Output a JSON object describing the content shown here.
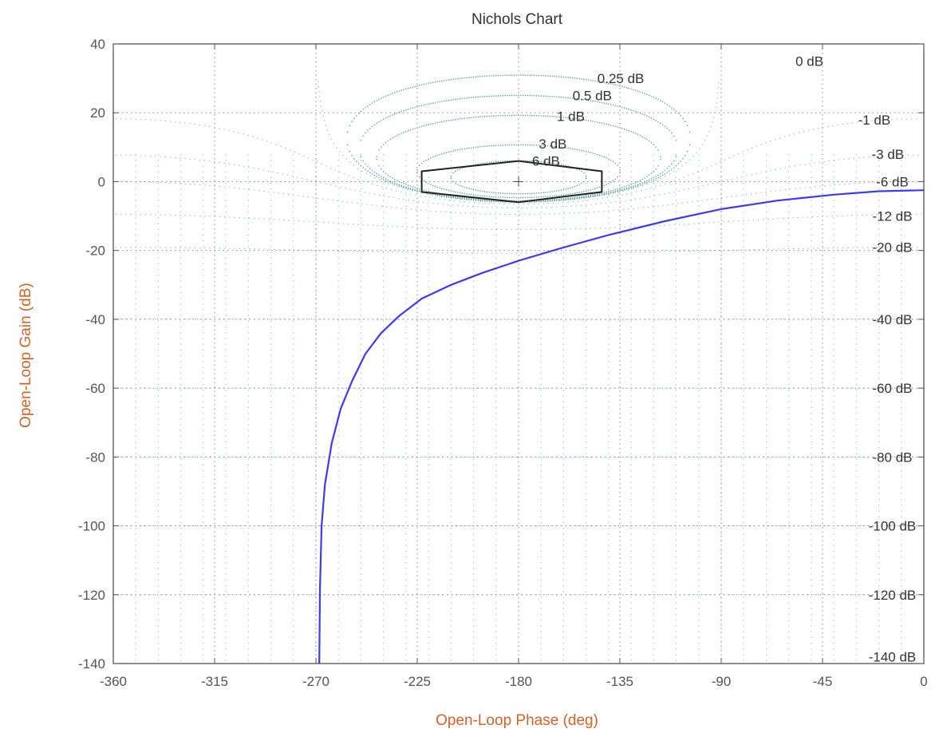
{
  "chart_data": {
    "type": "line",
    "title": "Nichols Chart",
    "xlabel": "Open-Loop Phase (deg)",
    "ylabel": "Open-Loop Gain (dB)",
    "xlim": [
      -360,
      0
    ],
    "ylim": [
      -140,
      40
    ],
    "x_ticks": [
      -360,
      -315,
      -270,
      -225,
      -180,
      -135,
      -90,
      -45,
      0
    ],
    "y_ticks": [
      -140,
      -120,
      -100,
      -80,
      -60,
      -40,
      -20,
      0,
      20,
      40
    ],
    "x_tick_labels": [
      "-360",
      "-315",
      "-270",
      "-225",
      "-180",
      "-135",
      "-90",
      "-45",
      "0"
    ],
    "y_tick_labels": [
      "-140",
      "-120",
      "-100",
      "-80",
      "-60",
      "-40",
      "-20",
      "0",
      "20",
      "40"
    ],
    "grid": true,
    "grid_phase_lines": [
      -350,
      -340,
      -330,
      -320,
      -310,
      -300,
      -290,
      -280,
      -270,
      -260,
      -250,
      -240,
      -230,
      -220,
      -210,
      -200,
      -190,
      -170,
      -160,
      -150,
      -140,
      -130,
      -120,
      -110,
      -100,
      -90,
      -80,
      -70,
      -60,
      -50,
      -40,
      -30,
      -20,
      -10,
      0
    ],
    "m_circle_labels": [
      {
        "text": "0 dB",
        "m_db": 0,
        "phase": -57,
        "gain": 35
      },
      {
        "text": "0.25 dB",
        "m_db": 0.25,
        "phase": -145,
        "gain": 30
      },
      {
        "text": "0.5 dB",
        "m_db": 0.5,
        "phase": -156,
        "gain": 25
      },
      {
        "text": "1 dB",
        "m_db": 1,
        "phase": -163,
        "gain": 19
      },
      {
        "text": "3 dB",
        "m_db": 3,
        "phase": -171,
        "gain": 11
      },
      {
        "text": "6 dB",
        "m_db": 6,
        "phase": -174,
        "gain": 6
      },
      {
        "text": "-1 dB",
        "m_db": -1,
        "phase": -22,
        "gain": 18
      },
      {
        "text": "-3 dB",
        "m_db": -3,
        "phase": -16,
        "gain": 8
      },
      {
        "text": "-6 dB",
        "m_db": -6,
        "phase": -14,
        "gain": 0
      },
      {
        "text": "-12 dB",
        "m_db": -12,
        "phase": -14,
        "gain": -10
      },
      {
        "text": "-20 dB",
        "m_db": -20,
        "phase": -14,
        "gain": -19
      },
      {
        "text": "-40 dB",
        "m_db": -40,
        "phase": -14,
        "gain": -40
      },
      {
        "text": "-60 dB",
        "m_db": -60,
        "phase": -14,
        "gain": -60
      },
      {
        "text": "-80 dB",
        "m_db": -80,
        "phase": -14,
        "gain": -80
      },
      {
        "text": "-100 dB",
        "m_db": -100,
        "phase": -14,
        "gain": -100
      },
      {
        "text": "-120 dB",
        "m_db": -120,
        "phase": -14,
        "gain": -120
      },
      {
        "text": "-140 dB",
        "m_db": -140,
        "phase": -14,
        "gain": -138
      }
    ],
    "critical_point": {
      "phase": -180,
      "gain": 0
    },
    "margin_region": {
      "points": [
        [
          -223,
          3
        ],
        [
          -180,
          6
        ],
        [
          -143,
          3
        ],
        [
          -143,
          -3
        ],
        [
          -180,
          -6
        ],
        [
          -223,
          -3
        ]
      ]
    },
    "series": [
      {
        "color": "#3b3bf0",
        "x": [
          -268.5,
          -268.2,
          -267.5,
          -266,
          -263,
          -259,
          -254,
          -248,
          -241,
          -233,
          -223,
          -210,
          -196,
          -180,
          -162,
          -140,
          -115,
          -90,
          -65,
          -40,
          -20,
          0
        ],
        "y": [
          -140,
          -118,
          -100,
          -88,
          -76,
          -66,
          -58,
          -50,
          -44,
          -39,
          -34,
          -30,
          -26.5,
          -23,
          -19.5,
          -15.5,
          -11.5,
          -8,
          -5.5,
          -3.8,
          -2.8,
          -2.5
        ]
      }
    ]
  }
}
